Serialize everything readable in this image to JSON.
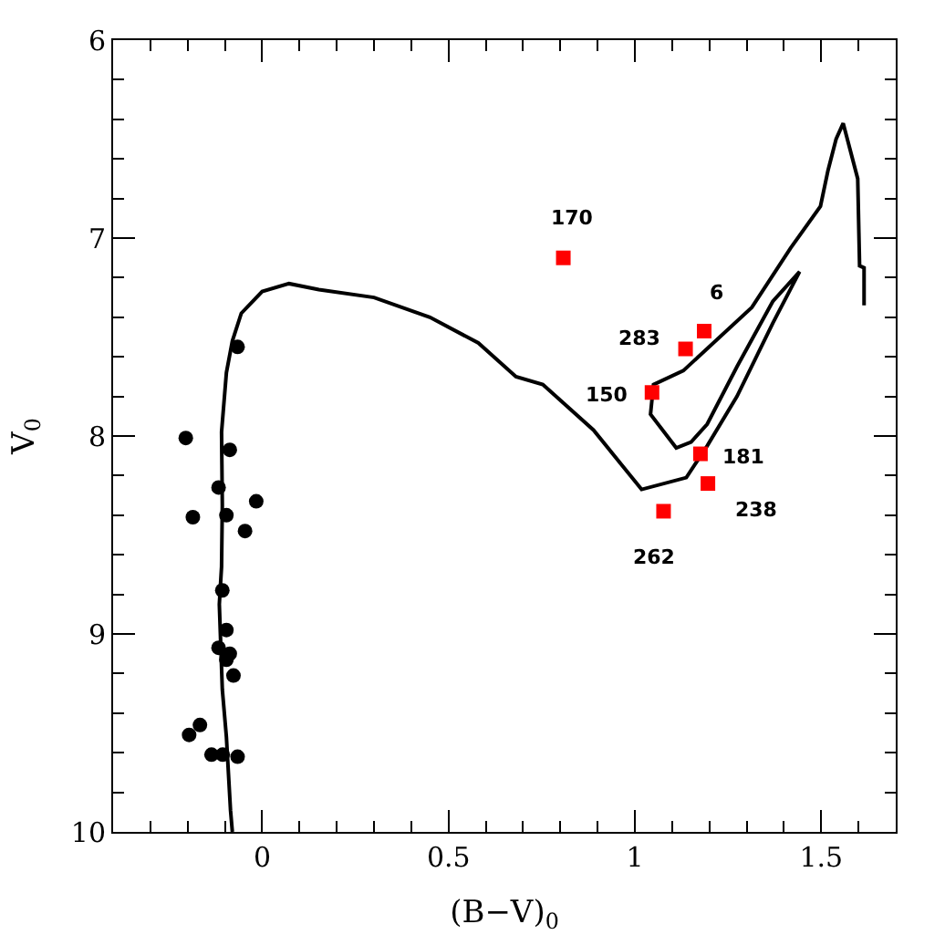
{
  "chart_data": {
    "type": "scatter",
    "xlabel": "(B−V)$_{0}$",
    "ylabel": "V$_{0}$",
    "xlim": [
      -0.4,
      1.7
    ],
    "ylim": [
      10,
      6
    ],
    "xticks": [
      {
        "value": -0.3,
        "label": null
      },
      {
        "value": -0.2,
        "label": null
      },
      {
        "value": -0.1,
        "label": null
      },
      0,
      {
        "value": 0.1,
        "label": null
      },
      {
        "value": 0.2,
        "label": null
      },
      {
        "value": 0.3,
        "label": null
      },
      {
        "value": 0.4,
        "label": null
      },
      0.5,
      {
        "value": 0.6,
        "label": null
      },
      {
        "value": 0.7,
        "label": null
      },
      {
        "value": 0.8,
        "label": null
      },
      {
        "value": 0.9,
        "label": null
      },
      1,
      {
        "value": 1.1,
        "label": null
      },
      {
        "value": 1.2,
        "label": null
      },
      {
        "value": 1.3,
        "label": null
      },
      {
        "value": 1.4,
        "label": null
      },
      1.5,
      {
        "value": 1.6,
        "label": null
      }
    ],
    "yticks": [
      6,
      {
        "value": 6.2,
        "label": null
      },
      {
        "value": 6.4,
        "label": null
      },
      {
        "value": 6.6,
        "label": null
      },
      {
        "value": 6.8,
        "label": null
      },
      7,
      {
        "value": 7.2,
        "label": null
      },
      {
        "value": 7.4,
        "label": null
      },
      {
        "value": 7.6,
        "label": null
      },
      {
        "value": 7.8,
        "label": null
      },
      8,
      {
        "value": 8.2,
        "label": null
      },
      {
        "value": 8.4,
        "label": null
      },
      {
        "value": 8.6,
        "label": null
      },
      {
        "value": 8.8,
        "label": null
      },
      9,
      {
        "value": 9.2,
        "label": null
      },
      {
        "value": 9.4,
        "label": null
      },
      {
        "value": 9.6,
        "label": null
      },
      {
        "value": 9.8,
        "label": null
      },
      10
    ],
    "series": [
      {
        "type": "line",
        "color": "#000000",
        "marker": "none",
        "line_style": "solid",
        "x": [
          -0.08,
          -0.085,
          -0.096,
          -0.107,
          -0.115,
          -0.109,
          -0.107,
          -0.109,
          -0.096,
          -0.08,
          -0.056,
          0.0,
          0.072,
          0.152,
          0.3,
          0.45,
          0.58,
          0.681,
          0.753,
          0.889,
          1.018,
          1.138,
          1.194,
          1.274,
          1.37,
          1.442,
          1.37,
          1.274,
          1.194,
          1.151,
          1.111,
          1.042,
          1.05,
          1.13,
          1.314,
          1.418,
          1.498,
          1.518,
          1.54,
          1.559,
          1.598,
          1.603,
          1.615,
          1.615
        ],
        "values": [
          10.0,
          9.89,
          9.52,
          9.28,
          8.85,
          8.66,
          8.35,
          7.98,
          7.68,
          7.52,
          7.38,
          7.27,
          7.23,
          7.26,
          7.3,
          7.4,
          7.53,
          7.7,
          7.74,
          7.97,
          8.27,
          8.21,
          8.05,
          7.8,
          7.43,
          7.17,
          7.32,
          7.65,
          7.94,
          8.03,
          8.06,
          7.89,
          7.74,
          7.67,
          7.35,
          7.05,
          6.84,
          6.66,
          6.5,
          6.42,
          6.7,
          7.14,
          7.15,
          7.34
        ]
      },
      {
        "color": "#000000",
        "marker": "circle",
        "x": [
          -0.066,
          -0.205,
          -0.087,
          -0.117,
          -0.016,
          -0.186,
          -0.096,
          -0.046,
          -0.107,
          -0.096,
          -0.117,
          -0.087,
          -0.096,
          -0.077,
          -0.167,
          -0.196,
          -0.136,
          -0.106,
          -0.066
        ],
        "values": [
          7.55,
          8.01,
          8.07,
          8.26,
          8.33,
          8.41,
          8.4,
          8.48,
          8.78,
          8.98,
          9.07,
          9.1,
          9.13,
          9.21,
          9.46,
          9.51,
          9.61,
          9.61,
          9.62
        ]
      },
      {
        "color": "#ff0000",
        "marker": "square",
        "x": [
          0.808,
          1.186,
          1.136,
          1.046,
          1.176,
          1.196,
          1.077
        ],
        "values": [
          7.1,
          7.47,
          7.56,
          7.78,
          8.09,
          8.24,
          8.38
        ]
      }
    ],
    "annotations": [
      {
        "text": "170",
        "x": 0.808,
        "y": 7.1
      },
      {
        "text": "6",
        "x": 1.186,
        "y": 7.47
      },
      {
        "text": "283",
        "x": 1.136,
        "y": 7.56
      },
      {
        "text": "150",
        "x": 1.046,
        "y": 7.78
      },
      {
        "text": "181",
        "x": 1.176,
        "y": 8.09
      },
      {
        "text": "238",
        "x": 1.196,
        "y": 8.24
      },
      {
        "text": "262",
        "x": 1.077,
        "y": 8.38
      }
    ]
  }
}
